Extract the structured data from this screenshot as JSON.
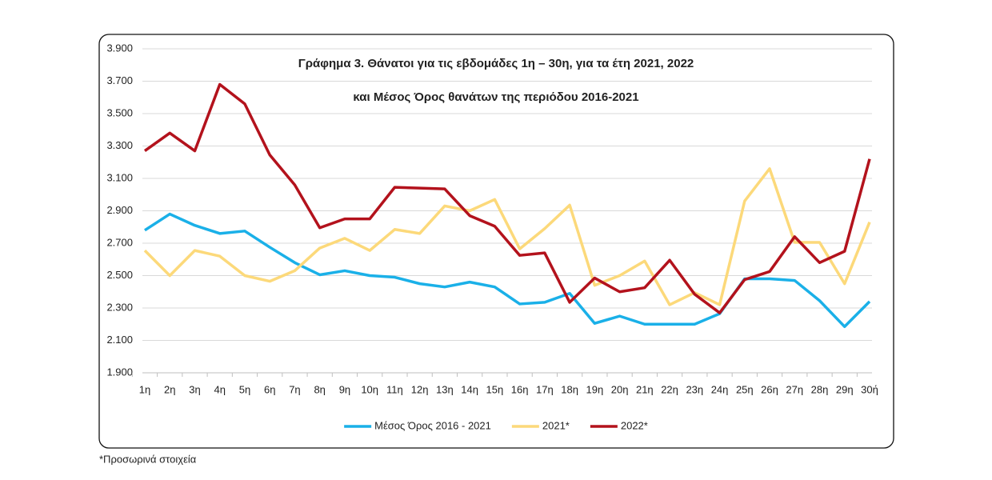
{
  "chart_data": {
    "type": "line",
    "title": "Γράφημα 3. Θάνατοι για τις εβδομάδες 1η – 30η, για τα έτη 2021, 2022",
    "subtitle": "και Μέσος Όρος θανάτων της περιόδου 2016-2021",
    "note": "*Προσωρινά στοιχεία",
    "categories": [
      "1η",
      "2η",
      "3η",
      "4η",
      "5η",
      "6η",
      "7η",
      "8η",
      "9η",
      "10η",
      "11η",
      "12η",
      "13η",
      "14η",
      "15η",
      "16η",
      "17η",
      "18η",
      "19η",
      "20η",
      "21η",
      "22η",
      "23η",
      "24η",
      "25η",
      "26η",
      "27η",
      "28η",
      "29η",
      "30ή"
    ],
    "series": [
      {
        "name": "Μέσος Όρος 2016 - 2021",
        "color": "#1ab0e8",
        "values": [
          2780,
          2880,
          2810,
          2760,
          2775,
          2675,
          2580,
          2505,
          2530,
          2500,
          2490,
          2450,
          2430,
          2460,
          2430,
          2325,
          2335,
          2390,
          2205,
          2250,
          2200,
          2200,
          2200,
          2265,
          2480,
          2480,
          2470,
          2345,
          2185,
          2340
        ]
      },
      {
        "name": "2021*",
        "color": "#fcd97a",
        "values": [
          2655,
          2500,
          2655,
          2620,
          2500,
          2465,
          2530,
          2670,
          2730,
          2655,
          2785,
          2760,
          2930,
          2900,
          2970,
          2665,
          2790,
          2935,
          2440,
          2500,
          2590,
          2320,
          2395,
          2320,
          2960,
          3160,
          2705,
          2705,
          2450,
          2830
        ]
      },
      {
        "name": "2022*",
        "color": "#b3121c",
        "values": [
          3270,
          3380,
          3270,
          3680,
          3560,
          3245,
          3060,
          2795,
          2850,
          2850,
          3045,
          3040,
          3035,
          2870,
          2805,
          2625,
          2640,
          2335,
          2485,
          2400,
          2425,
          2595,
          2385,
          2270,
          2475,
          2525,
          2740,
          2580,
          2650,
          3220
        ]
      }
    ],
    "ylim": [
      1900,
      3900
    ],
    "yticks": [
      {
        "value": 1900,
        "label": "1.900"
      },
      {
        "value": 2100,
        "label": "2.100"
      },
      {
        "value": 2300,
        "label": "2.300"
      },
      {
        "value": 2500,
        "label": "2.500"
      },
      {
        "value": 2700,
        "label": "2.700"
      },
      {
        "value": 2900,
        "label": "2.900"
      },
      {
        "value": 3100,
        "label": "3.100"
      },
      {
        "value": 3300,
        "label": "3.300"
      },
      {
        "value": 3500,
        "label": "3.500"
      },
      {
        "value": 3700,
        "label": "3.700"
      },
      {
        "value": 3900,
        "label": "3.900"
      }
    ],
    "grid": true,
    "legend": "bottom"
  }
}
